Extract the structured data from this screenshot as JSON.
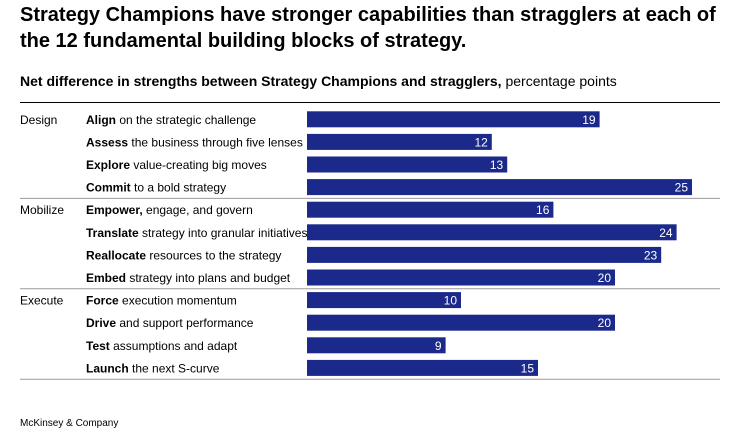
{
  "title": "Strategy Champions have stronger capabilities than stragglers at each of the 12 fundamental building blocks of strategy.",
  "subtitle_bold": "Net difference in strengths between Strategy Champions and stragglers,",
  "subtitle_unit": "percentage points",
  "footer": "McKinsey & Company",
  "colors": {
    "bar": "#1b2a8a",
    "label": "#ffffff",
    "divider": "#9a9a9a",
    "rule": "#000000"
  },
  "chart_data": {
    "type": "bar",
    "orientation": "horizontal",
    "xlim": [
      0,
      25
    ],
    "groups": [
      {
        "name": "Design",
        "items": [
          {
            "bold": "Align",
            "rest": " on the strategic challenge",
            "value": 19
          },
          {
            "bold": "Assess",
            "rest": " the business through five lenses",
            "value": 12
          },
          {
            "bold": "Explore",
            "rest": " value-creating big moves",
            "value": 13
          },
          {
            "bold": "Commit",
            "rest": " to a bold strategy",
            "value": 25
          }
        ]
      },
      {
        "name": "Mobilize",
        "items": [
          {
            "bold": "Empower,",
            "rest": " engage, and govern",
            "value": 16
          },
          {
            "bold": "Translate",
            "rest": " strategy into granular initiatives",
            "value": 24
          },
          {
            "bold": "Reallocate",
            "rest": " resources to the strategy",
            "value": 23
          },
          {
            "bold": "Embed",
            "rest": " strategy into plans and budget",
            "value": 20
          }
        ]
      },
      {
        "name": "Execute",
        "items": [
          {
            "bold": "Force",
            "rest": " execution momentum",
            "value": 10
          },
          {
            "bold": "Drive",
            "rest": " and support performance",
            "value": 20
          },
          {
            "bold": "Test",
            "rest": " assumptions and adapt",
            "value": 9
          },
          {
            "bold": "Launch",
            "rest": " the next S-curve",
            "value": 15
          }
        ]
      }
    ]
  }
}
